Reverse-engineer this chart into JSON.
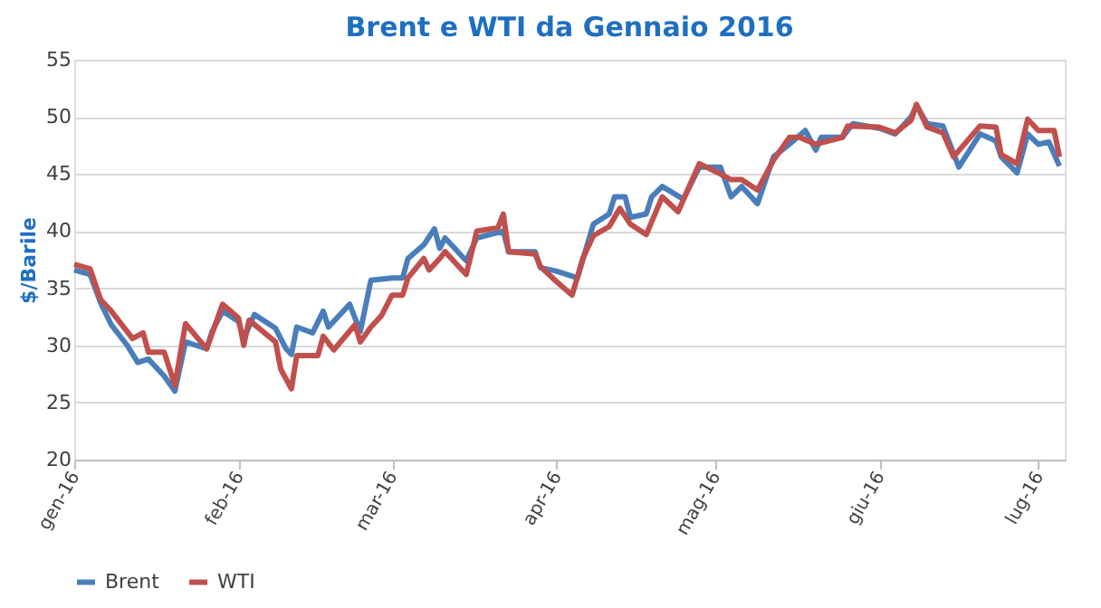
{
  "chart_data": {
    "type": "line",
    "title": "Brent e WTI da Gennaio 2016",
    "ylabel": "$/Barile",
    "xlim": [
      "2016-01-01",
      "2016-07-06"
    ],
    "xticks": [
      {
        "value": "2016-01-01",
        "label": "gen-16"
      },
      {
        "value": "2016-02-01",
        "label": "feb-16"
      },
      {
        "value": "2016-03-01",
        "label": "mar-16"
      },
      {
        "value": "2016-04-01",
        "label": "apr-16"
      },
      {
        "value": "2016-05-01",
        "label": "mag-16"
      },
      {
        "value": "2016-06-01",
        "label": "giu-16"
      },
      {
        "value": "2016-07-01",
        "label": "lug-16"
      }
    ],
    "ylim": [
      20,
      55
    ],
    "yticks": [
      20,
      25,
      30,
      35,
      40,
      45,
      50,
      55
    ],
    "grid": "y",
    "legend": "bottom",
    "marker": "none",
    "line_style": "solid",
    "series": [
      {
        "name": "Brent",
        "color": "#4a7ebb",
        "x": [
          "2016-01-01",
          "2016-01-04",
          "2016-01-06",
          "2016-01-08",
          "2016-01-11",
          "2016-01-13",
          "2016-01-15",
          "2016-01-18",
          "2016-01-20",
          "2016-01-22",
          "2016-01-26",
          "2016-01-27",
          "2016-01-29",
          "2016-02-01",
          "2016-02-02",
          "2016-02-04",
          "2016-02-08",
          "2016-02-10",
          "2016-02-11",
          "2016-02-12",
          "2016-02-15",
          "2016-02-17",
          "2016-02-18",
          "2016-02-22",
          "2016-02-24",
          "2016-02-26",
          "2016-03-01",
          "2016-03-03",
          "2016-03-04",
          "2016-03-07",
          "2016-03-09",
          "2016-03-10",
          "2016-03-11",
          "2016-03-15",
          "2016-03-17",
          "2016-03-22",
          "2016-03-23",
          "2016-03-28",
          "2016-03-29",
          "2016-04-01",
          "2016-04-05",
          "2016-04-08",
          "2016-04-11",
          "2016-04-12",
          "2016-04-14",
          "2016-04-15",
          "2016-04-18",
          "2016-04-19",
          "2016-04-21",
          "2016-04-25",
          "2016-04-28",
          "2016-05-02",
          "2016-05-04",
          "2016-05-06",
          "2016-05-09",
          "2016-05-12",
          "2016-05-15",
          "2016-05-18",
          "2016-05-20",
          "2016-05-21",
          "2016-05-25",
          "2016-05-27",
          "2016-06-01",
          "2016-06-04",
          "2016-06-07",
          "2016-06-08",
          "2016-06-10",
          "2016-06-13",
          "2016-06-16",
          "2016-06-20",
          "2016-06-23",
          "2016-06-24",
          "2016-06-27",
          "2016-06-29",
          "2016-07-01",
          "2016-07-03",
          "2016-07-05"
        ],
        "values": [
          36.6,
          36.2,
          33.7,
          31.8,
          30.0,
          28.5,
          28.8,
          27.3,
          26.0,
          30.3,
          29.7,
          31.2,
          33.0,
          32.1,
          30.6,
          32.7,
          31.5,
          29.7,
          29.2,
          31.6,
          31.1,
          33.0,
          31.6,
          33.6,
          31.2,
          35.7,
          35.9,
          35.9,
          37.6,
          38.8,
          40.2,
          38.5,
          39.4,
          37.4,
          39.4,
          40.0,
          38.2,
          38.2,
          36.8,
          36.5,
          35.9,
          40.6,
          41.5,
          43.0,
          43.0,
          41.2,
          41.5,
          43.0,
          43.9,
          42.8,
          45.6,
          45.6,
          43.0,
          43.9,
          42.4,
          46.5,
          47.6,
          48.8,
          47.1,
          48.2,
          48.2,
          49.4,
          49.0,
          48.5,
          50.0,
          51.0,
          49.4,
          49.2,
          45.6,
          48.5,
          47.9,
          46.5,
          45.1,
          48.5,
          47.6,
          47.8,
          45.7
        ]
      },
      {
        "name": "WTI",
        "color": "#c0504d",
        "x": [
          "2016-01-01",
          "2016-01-04",
          "2016-01-06",
          "2016-01-08",
          "2016-01-12",
          "2016-01-14",
          "2016-01-15",
          "2016-01-18",
          "2016-01-20",
          "2016-01-22",
          "2016-01-26",
          "2016-01-29",
          "2016-02-01",
          "2016-02-02",
          "2016-02-03",
          "2016-02-08",
          "2016-02-09",
          "2016-02-11",
          "2016-02-12",
          "2016-02-16",
          "2016-02-17",
          "2016-02-19",
          "2016-02-23",
          "2016-02-24",
          "2016-02-26",
          "2016-02-28",
          "2016-03-01",
          "2016-03-03",
          "2016-03-04",
          "2016-03-07",
          "2016-03-08",
          "2016-03-10",
          "2016-03-11",
          "2016-03-15",
          "2016-03-17",
          "2016-03-21",
          "2016-03-22",
          "2016-03-23",
          "2016-03-28",
          "2016-03-29",
          "2016-04-01",
          "2016-04-04",
          "2016-04-06",
          "2016-04-08",
          "2016-04-11",
          "2016-04-13",
          "2016-04-15",
          "2016-04-18",
          "2016-04-21",
          "2016-04-24",
          "2016-04-28",
          "2016-05-02",
          "2016-05-04",
          "2016-05-06",
          "2016-05-09",
          "2016-05-12",
          "2016-05-15",
          "2016-05-17",
          "2016-05-20",
          "2016-05-25",
          "2016-05-26",
          "2016-06-01",
          "2016-06-04",
          "2016-06-07",
          "2016-06-08",
          "2016-06-10",
          "2016-06-13",
          "2016-06-15",
          "2016-06-20",
          "2016-06-23",
          "2016-06-24",
          "2016-06-27",
          "2016-06-29",
          "2016-07-01",
          "2016-07-04",
          "2016-07-05"
        ],
        "values": [
          37.1,
          36.7,
          34.0,
          33.0,
          30.6,
          31.1,
          29.4,
          29.4,
          26.5,
          31.9,
          29.7,
          33.6,
          32.4,
          30.0,
          32.2,
          30.3,
          27.9,
          26.2,
          29.1,
          29.1,
          30.8,
          29.6,
          31.8,
          30.3,
          31.6,
          32.6,
          34.4,
          34.4,
          35.9,
          37.6,
          36.6,
          37.6,
          38.2,
          36.2,
          40.0,
          40.3,
          41.5,
          38.2,
          38.0,
          36.9,
          35.6,
          34.4,
          37.6,
          39.6,
          40.4,
          42.0,
          40.6,
          39.7,
          43.0,
          41.7,
          45.9,
          45.0,
          44.5,
          44.5,
          43.6,
          46.2,
          48.2,
          48.2,
          47.6,
          48.2,
          49.2,
          49.1,
          48.6,
          49.7,
          51.1,
          49.1,
          48.6,
          46.5,
          49.2,
          49.1,
          46.7,
          45.9,
          49.8,
          48.8,
          48.8,
          46.5
        ]
      }
    ]
  }
}
